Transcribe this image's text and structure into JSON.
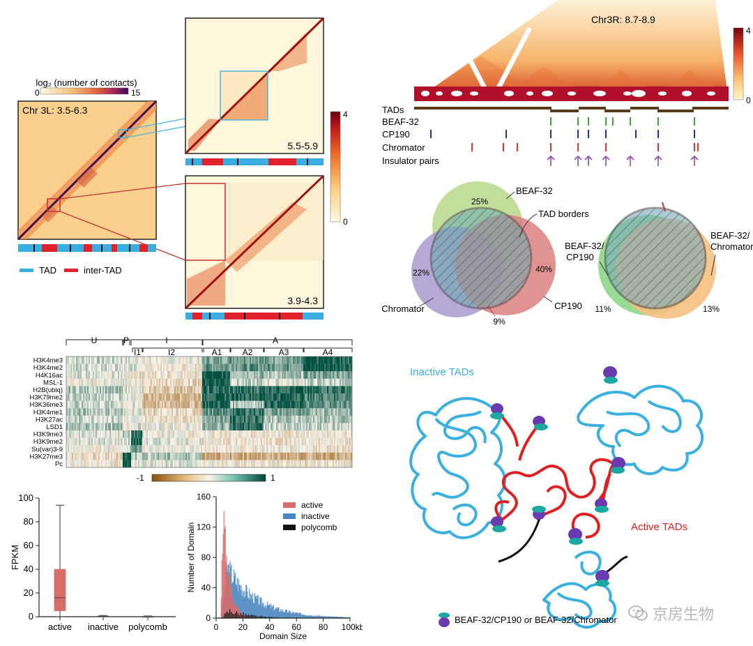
{
  "panel_a": {
    "colorbar_title": "log₂ (number of contacts)",
    "colorbar_min": "0",
    "colorbar_max": "15",
    "main_label": "Chr 3L: 3.5-6.3",
    "zoom1_label": "5.5-5.9",
    "zoom2_label": "3.9-4.3",
    "zoom_colorbar_max": "4",
    "zoom_colorbar_min": "0",
    "legend_tad": "TAD",
    "legend_inter": "inter-TAD",
    "colors": {
      "tad": "#3aaee0",
      "inter_tad": "#e0202a",
      "cyan_zoom": "#4ab8d8",
      "red_zoom": "#c83030"
    }
  },
  "panel_b": {
    "region_label": "Chr3R: 8.7-8.9",
    "colorbar_max": "4",
    "colorbar_min": "0",
    "tracks": [
      "TADs",
      "BEAF-32",
      "CP190",
      "Chromator",
      "Insulator pairs"
    ],
    "colors": {
      "tads": "#5a3a1a",
      "beaf": "#3aa83a",
      "cp190": "#2233aa",
      "chromator": "#e03030",
      "pairs": "#8a4ab0"
    }
  },
  "panel_c": {
    "venn1": {
      "beaf_label": "BEAF-32",
      "borders_label": "TAD borders",
      "chromator_label": "Chromator",
      "cp190_label": "CP190",
      "pct_beaf": "25%",
      "pct_chromator": "22%",
      "pct_cp190": "40%",
      "pct_center": "9%"
    },
    "venn2": {
      "beaf_cp_label_1": "BEAF-32/",
      "beaf_cp_label_2": "CP190",
      "beaf_chr_label_1": "BEAF-32/",
      "beaf_chr_label_2": "Chromator",
      "pct_left": "11%",
      "pct_right": "13%"
    }
  },
  "panel_d": {
    "groups": [
      {
        "label": "U"
      },
      {
        "label": "P"
      },
      {
        "label": "I"
      },
      {
        "label": "A"
      }
    ],
    "subgroups": [
      "I1",
      "I2",
      "A1",
      "A2",
      "A3",
      "A4"
    ],
    "marks": [
      "H3K4me3",
      "H3K4me2",
      "H4K16ac",
      "MSL-1",
      "H2B(ubiq)",
      "H3K79me2",
      "H3K36me3",
      "H3K4me1",
      "H3K27ac",
      "LSD1",
      "H3K9me3",
      "H3K9me2",
      "Su(var)3-9",
      "H3K27me3",
      "Pc"
    ],
    "colorbar_min": "-1",
    "colorbar_max": "1"
  },
  "chart_data": [
    {
      "type": "box",
      "ylabel": "FPKM",
      "ylim": [
        0,
        100
      ],
      "yticks": [
        0,
        20,
        40,
        60,
        80,
        100
      ],
      "categories": [
        "active",
        "inactive",
        "polycomb"
      ],
      "boxes": [
        {
          "name": "active",
          "min": 0,
          "q1": 5,
          "median": 16,
          "q3": 40,
          "max": 94
        },
        {
          "name": "inactive",
          "min": 0,
          "q1": 0,
          "median": 0.3,
          "q3": 0.6,
          "max": 1
        },
        {
          "name": "polycomb",
          "min": 0,
          "q1": 0,
          "median": 0.1,
          "q3": 0.3,
          "max": 0.6
        }
      ]
    },
    {
      "type": "bar",
      "xlabel": "Domain Size",
      "ylabel": "Number of Domain",
      "xlim": [
        0,
        100
      ],
      "ylim": [
        0,
        160
      ],
      "xticks": [
        "0",
        "20",
        "40",
        "60",
        "80",
        "100kb"
      ],
      "yticks": [
        0,
        40,
        80,
        120,
        160
      ],
      "legend_position": "top-right",
      "series": [
        {
          "name": "active",
          "color": "#d96b6b",
          "peak_x": 5,
          "peak_y": 152
        },
        {
          "name": "inactive",
          "color": "#4a86c0",
          "peak_x": 8,
          "peak_y": 72
        },
        {
          "name": "polycomb",
          "color": "#111111",
          "peak_x": 10,
          "peak_y": 12
        }
      ]
    }
  ],
  "panel_f": {
    "inactive_label": "Inactive TADs",
    "active_label": "Active TADs",
    "legend_label": "BEAF-32/CP190 or BEAF-32/Chromator",
    "colors": {
      "inactive": "#3aaee0",
      "active": "#e02020",
      "insulator_purple": "#6a3ab0",
      "insulator_teal": "#1aa8a0"
    }
  },
  "watermark": {
    "text": "京房生物"
  }
}
